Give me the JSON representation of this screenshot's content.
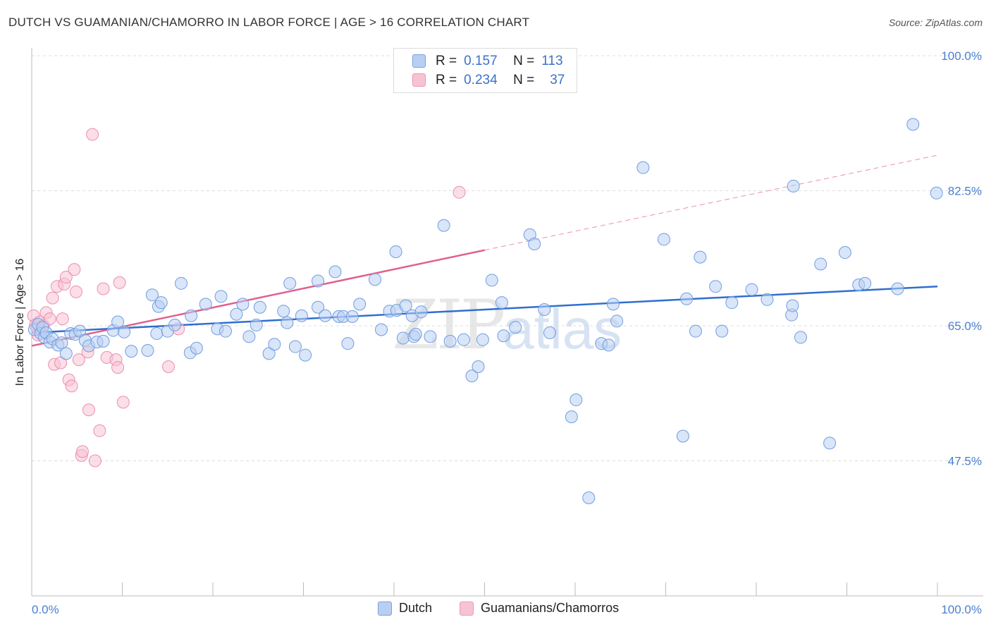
{
  "header": {
    "title": "DUTCH VS GUAMANIAN/CHAMORRO IN LABOR FORCE | AGE > 16 CORRELATION CHART",
    "source": "Source: ZipAtlas.com"
  },
  "stats_box": {
    "rows": [
      {
        "r_label": "R =",
        "r_value": "0.157",
        "n_label": "N =",
        "n_value": "113"
      },
      {
        "r_label": "R =",
        "r_value": "0.234",
        "n_label": "N =",
        "n_value": "37"
      }
    ]
  },
  "legend": {
    "items": [
      {
        "label": "Dutch"
      },
      {
        "label": "Guamanians/Chamorros"
      }
    ]
  },
  "watermark": {
    "zip": "ZIP",
    "atlas": "atlas"
  },
  "chart_data": {
    "type": "scatter",
    "title": "DUTCH VS GUAMANIAN/CHAMORRO IN LABOR FORCE | AGE > 16 CORRELATION CHART",
    "xlabel": "",
    "ylabel": "In Labor Force | Age > 16",
    "xlim": [
      0,
      100
    ],
    "ylim": [
      30,
      100
    ],
    "x_tick_labels": [
      "0.0%",
      "100.0%"
    ],
    "y_ticks": [
      47.5,
      65.0,
      82.5,
      100.0
    ],
    "y_tick_labels": [
      "47.5%",
      "65.0%",
      "82.5%",
      "100.0%"
    ],
    "grid": true,
    "legend_position": "bottom-center",
    "colors": {
      "dutch": "#6f9ee0",
      "dutch_fill": "#b9cff2",
      "dutch_line": "#2f6fcf",
      "guam": "#ec8fae",
      "guam_fill": "#f7c3d3",
      "guam_line": "#e0608e"
    },
    "series": [
      {
        "name": "Dutch",
        "r": 0.157,
        "n": 113,
        "trend": {
          "x": [
            0,
            100
          ],
          "y": [
            64.1,
            70.1
          ]
        },
        "points": [
          [
            0.3,
            64.5
          ],
          [
            0.7,
            65.2
          ],
          [
            1.0,
            64.0
          ],
          [
            1.2,
            64.8
          ],
          [
            1.4,
            63.5
          ],
          [
            1.6,
            64.1
          ],
          [
            2.0,
            62.9
          ],
          [
            2.3,
            63.3
          ],
          [
            2.9,
            62.5
          ],
          [
            3.3,
            62.8
          ],
          [
            3.8,
            61.4
          ],
          [
            4.3,
            64.0
          ],
          [
            4.8,
            63.9
          ],
          [
            5.3,
            64.3
          ],
          [
            5.9,
            63.1
          ],
          [
            6.3,
            62.4
          ],
          [
            7.2,
            62.9
          ],
          [
            7.9,
            63.0
          ],
          [
            9.0,
            64.4
          ],
          [
            9.5,
            65.5
          ],
          [
            10.2,
            64.2
          ],
          [
            11.0,
            61.7
          ],
          [
            12.8,
            61.8
          ],
          [
            13.3,
            69.0
          ],
          [
            13.8,
            64.0
          ],
          [
            14.0,
            67.5
          ],
          [
            14.3,
            68.0
          ],
          [
            15.0,
            64.3
          ],
          [
            15.8,
            65.1
          ],
          [
            16.5,
            70.5
          ],
          [
            17.5,
            61.5
          ],
          [
            17.6,
            66.3
          ],
          [
            18.2,
            62.1
          ],
          [
            19.2,
            67.8
          ],
          [
            20.5,
            64.6
          ],
          [
            20.9,
            68.8
          ],
          [
            21.4,
            64.3
          ],
          [
            22.6,
            66.5
          ],
          [
            23.3,
            67.8
          ],
          [
            24.0,
            63.6
          ],
          [
            24.8,
            65.1
          ],
          [
            25.2,
            67.4
          ],
          [
            26.2,
            61.4
          ],
          [
            26.8,
            62.6
          ],
          [
            27.8,
            66.9
          ],
          [
            28.2,
            65.4
          ],
          [
            28.5,
            70.5
          ],
          [
            29.1,
            62.3
          ],
          [
            29.8,
            66.3
          ],
          [
            30.2,
            61.2
          ],
          [
            31.6,
            67.4
          ],
          [
            31.6,
            70.8
          ],
          [
            32.4,
            66.3
          ],
          [
            33.5,
            72.0
          ],
          [
            33.9,
            66.2
          ],
          [
            34.4,
            66.2
          ],
          [
            34.9,
            62.7
          ],
          [
            35.4,
            66.2
          ],
          [
            36.2,
            67.8
          ],
          [
            37.9,
            71.0
          ],
          [
            38.6,
            64.5
          ],
          [
            39.5,
            66.9
          ],
          [
            40.2,
            74.6
          ],
          [
            40.3,
            67.0
          ],
          [
            41.0,
            63.4
          ],
          [
            41.3,
            67.6
          ],
          [
            42.0,
            66.3
          ],
          [
            42.2,
            63.6
          ],
          [
            42.4,
            63.9
          ],
          [
            43.0,
            66.8
          ],
          [
            44.0,
            63.6
          ],
          [
            45.5,
            78.0
          ],
          [
            46.2,
            63.0
          ],
          [
            47.7,
            63.2
          ],
          [
            48.6,
            58.5
          ],
          [
            49.3,
            59.7
          ],
          [
            49.8,
            63.2
          ],
          [
            50.8,
            70.9
          ],
          [
            51.9,
            68.0
          ],
          [
            52.1,
            63.7
          ],
          [
            53.4,
            64.8
          ],
          [
            55.0,
            76.8
          ],
          [
            55.5,
            75.6
          ],
          [
            56.6,
            67.1
          ],
          [
            57.2,
            64.1
          ],
          [
            59.6,
            53.2
          ],
          [
            60.1,
            55.4
          ],
          [
            61.5,
            42.7
          ],
          [
            62.9,
            62.7
          ],
          [
            63.7,
            62.5
          ],
          [
            64.2,
            67.8
          ],
          [
            64.6,
            65.6
          ],
          [
            67.5,
            85.5
          ],
          [
            69.8,
            76.2
          ],
          [
            71.9,
            50.7
          ],
          [
            72.3,
            68.5
          ],
          [
            73.3,
            64.3
          ],
          [
            73.8,
            73.9
          ],
          [
            75.5,
            70.1
          ],
          [
            76.2,
            64.3
          ],
          [
            77.3,
            68.0
          ],
          [
            79.5,
            69.7
          ],
          [
            81.2,
            68.4
          ],
          [
            83.9,
            66.4
          ],
          [
            84.0,
            67.6
          ],
          [
            84.1,
            83.1
          ],
          [
            84.9,
            63.5
          ],
          [
            87.1,
            73.0
          ],
          [
            88.1,
            49.8
          ],
          [
            89.8,
            74.5
          ],
          [
            91.3,
            70.3
          ],
          [
            92.0,
            70.5
          ],
          [
            95.6,
            69.8
          ],
          [
            97.3,
            91.1
          ],
          [
            99.9,
            82.2
          ]
        ]
      },
      {
        "name": "Guamanians/Chamorros",
        "r": 0.234,
        "n": 37,
        "trend": {
          "x": [
            0,
            50
          ],
          "y": [
            62.4,
            74.8
          ]
        },
        "trend_extension": {
          "x": [
            50,
            100
          ],
          "y": [
            74.8,
            87.1
          ]
        },
        "points": [
          [
            0.2,
            66.3
          ],
          [
            0.4,
            65.1
          ],
          [
            0.6,
            64.7
          ],
          [
            0.7,
            63.8
          ],
          [
            0.9,
            65.5
          ],
          [
            1.1,
            64.4
          ],
          [
            1.3,
            65.0
          ],
          [
            1.6,
            66.7
          ],
          [
            2.0,
            65.9
          ],
          [
            2.3,
            68.6
          ],
          [
            2.5,
            60.0
          ],
          [
            2.8,
            70.1
          ],
          [
            3.2,
            60.2
          ],
          [
            3.4,
            65.9
          ],
          [
            3.6,
            70.4
          ],
          [
            3.8,
            71.3
          ],
          [
            4.1,
            58.0
          ],
          [
            4.4,
            57.2
          ],
          [
            4.7,
            72.3
          ],
          [
            4.9,
            69.4
          ],
          [
            5.2,
            60.6
          ],
          [
            5.5,
            48.2
          ],
          [
            5.6,
            48.7
          ],
          [
            6.2,
            61.6
          ],
          [
            6.3,
            54.1
          ],
          [
            6.7,
            89.8
          ],
          [
            7.0,
            47.5
          ],
          [
            7.5,
            51.4
          ],
          [
            7.9,
            69.8
          ],
          [
            8.3,
            60.9
          ],
          [
            9.3,
            60.6
          ],
          [
            9.5,
            59.6
          ],
          [
            9.7,
            70.6
          ],
          [
            10.1,
            55.1
          ],
          [
            15.1,
            59.7
          ],
          [
            16.2,
            64.6
          ],
          [
            47.2,
            82.3
          ]
        ]
      }
    ]
  }
}
